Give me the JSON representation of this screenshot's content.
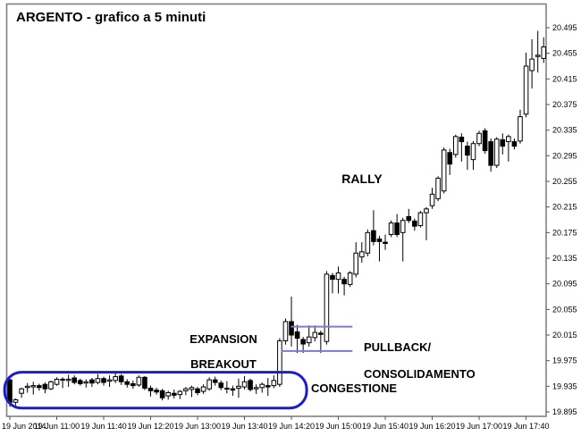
{
  "header": {
    "title": "ARGENTO - grafico a 5 minuti"
  },
  "labels": {
    "rally": "RALLY",
    "expansion_line1": "EXPANSION",
    "expansion_line2": "BREAKOUT",
    "pullback_line1": "PULLBACK/",
    "pullback_line2": "CONSOLIDAMENTO",
    "congestione": "CONGESTIONE"
  },
  "colors": {
    "background": "#ffffff",
    "frame": "#808080",
    "candle_outline": "#000000",
    "candle_up_fill": "#ffffff",
    "candle_down_fill": "#000000",
    "axis_text": "#000000",
    "annotation_text": "#000000",
    "congestion_box": "#1c1ccd",
    "consolidation_lines": "#7a7ad9"
  },
  "chart_data": {
    "type": "candlestick",
    "title": "ARGENTO - grafico a 5 minuti",
    "timeframe_minutes": 5,
    "date": "19 Jun 2014",
    "y_axis": {
      "min": 19.895,
      "max": 20.495,
      "tick_step": 0.04,
      "tick_labels": [
        "20.495",
        "20.455",
        "20.415",
        "20.375",
        "20.335",
        "20.295",
        "20.255",
        "20.215",
        "20.175",
        "20.135",
        "20.095",
        "20.055",
        "20.015",
        "19.975",
        "19.935",
        "19.895"
      ]
    },
    "x_axis": {
      "candles_per_tick": 8,
      "tick_labels": [
        "19 Jun 2014",
        "19 Jun 11:00",
        "19 Jun 11:40",
        "19 Jun 12:20",
        "19 Jun 13:00",
        "19 Jun 13:40",
        "19 Jun 14:20",
        "19 Jun 15:00",
        "19 Jun 15:40",
        "19 Jun 16:20",
        "19 Jun 17:00",
        "19 Jun 17:40"
      ]
    },
    "candles": [
      [
        "10:20",
        19.945,
        19.95,
        19.903,
        19.91
      ],
      [
        "10:25",
        19.91,
        19.916,
        19.905,
        19.914
      ],
      [
        "10:30",
        19.924,
        19.933,
        19.917,
        19.931
      ],
      [
        "10:35",
        19.933,
        19.94,
        19.925,
        19.935
      ],
      [
        "10:40",
        19.934,
        19.942,
        19.922,
        19.936
      ],
      [
        "10:45",
        19.936,
        19.939,
        19.928,
        19.933
      ],
      [
        "10:50",
        19.938,
        19.941,
        19.924,
        19.931
      ],
      [
        "10:55",
        19.931,
        19.944,
        19.929,
        19.942
      ],
      [
        "11:00",
        19.938,
        19.949,
        19.936,
        19.946
      ],
      [
        "11:05",
        19.946,
        19.949,
        19.932,
        19.945
      ],
      [
        "11:10",
        19.944,
        19.953,
        19.934,
        19.946
      ],
      [
        "11:15",
        19.948,
        19.952,
        19.938,
        19.941
      ],
      [
        "11:20",
        19.944,
        19.947,
        19.936,
        19.939
      ],
      [
        "11:25",
        19.94,
        19.946,
        19.933,
        19.942
      ],
      [
        "11:30",
        19.945,
        19.948,
        19.934,
        19.94
      ],
      [
        "11:35",
        19.941,
        19.954,
        19.938,
        19.947
      ],
      [
        "11:40",
        19.947,
        19.95,
        19.936,
        19.941
      ],
      [
        "11:45",
        19.943,
        19.952,
        19.934,
        19.945
      ],
      [
        "11:50",
        19.944,
        19.957,
        19.94,
        19.95
      ],
      [
        "11:55",
        19.951,
        19.954,
        19.937,
        19.942
      ],
      [
        "12:00",
        19.942,
        19.946,
        19.933,
        19.938
      ],
      [
        "12:05",
        19.939,
        19.944,
        19.931,
        19.936
      ],
      [
        "12:10",
        19.937,
        19.952,
        19.934,
        19.949
      ],
      [
        "12:15",
        19.949,
        19.951,
        19.929,
        19.932
      ],
      [
        "12:20",
        19.932,
        19.936,
        19.919,
        19.928
      ],
      [
        "12:25",
        19.929,
        19.933,
        19.922,
        19.926
      ],
      [
        "12:30",
        19.928,
        19.931,
        19.913,
        19.917
      ],
      [
        "12:35",
        19.92,
        19.928,
        19.914,
        19.925
      ],
      [
        "12:40",
        19.924,
        19.93,
        19.916,
        19.921
      ],
      [
        "12:45",
        19.922,
        19.929,
        19.915,
        19.927
      ],
      [
        "12:50",
        19.928,
        19.934,
        19.921,
        19.931
      ],
      [
        "12:55",
        19.93,
        19.936,
        19.918,
        19.933
      ],
      [
        "13:00",
        19.931,
        19.934,
        19.921,
        19.925
      ],
      [
        "13:05",
        19.927,
        19.938,
        19.923,
        19.934
      ],
      [
        "13:10",
        19.931,
        19.949,
        19.928,
        19.945
      ],
      [
        "13:15",
        19.945,
        19.95,
        19.936,
        19.941
      ],
      [
        "13:20",
        19.94,
        19.944,
        19.929,
        19.933
      ],
      [
        "13:25",
        19.932,
        19.943,
        19.924,
        19.931
      ],
      [
        "13:30",
        19.931,
        19.936,
        19.92,
        19.929
      ],
      [
        "13:35",
        19.932,
        19.947,
        19.917,
        19.935
      ],
      [
        "13:40",
        19.934,
        19.951,
        19.93,
        19.942
      ],
      [
        "13:45",
        19.944,
        19.947,
        19.927,
        19.93
      ],
      [
        "13:50",
        19.931,
        19.938,
        19.923,
        19.933
      ],
      [
        "13:55",
        19.933,
        19.941,
        19.925,
        19.938
      ],
      [
        "14:00",
        19.936,
        19.948,
        19.92,
        19.934
      ],
      [
        "14:05",
        19.936,
        19.952,
        19.932,
        19.944
      ],
      [
        "14:10",
        19.938,
        20.01,
        19.934,
        20.006
      ],
      [
        "14:15",
        20.006,
        20.041,
        20.0,
        20.036
      ],
      [
        "14:20",
        20.036,
        20.075,
        19.997,
        20.015
      ],
      [
        "14:25",
        20.02,
        20.031,
        19.987,
        20.01
      ],
      [
        "14:30",
        20.008,
        20.012,
        19.987,
        20.001
      ],
      [
        "14:35",
        20.003,
        20.03,
        19.997,
        20.012
      ],
      [
        "14:40",
        20.011,
        20.03,
        20.005,
        20.019
      ],
      [
        "14:45",
        20.018,
        20.022,
        19.987,
        20.016
      ],
      [
        "14:50",
        20.005,
        20.115,
        20.0,
        20.11
      ],
      [
        "14:55",
        20.108,
        20.112,
        20.08,
        20.102
      ],
      [
        "15:00",
        20.102,
        20.122,
        20.08,
        20.112
      ],
      [
        "15:05",
        20.102,
        20.106,
        20.077,
        20.095
      ],
      [
        "15:10",
        20.094,
        20.115,
        20.09,
        20.112
      ],
      [
        "15:15",
        20.11,
        20.16,
        20.105,
        20.143
      ],
      [
        "15:20",
        20.137,
        20.16,
        20.128,
        20.145
      ],
      [
        "15:25",
        20.143,
        20.18,
        20.138,
        20.175
      ],
      [
        "15:30",
        20.178,
        20.21,
        20.155,
        20.161
      ],
      [
        "15:35",
        20.165,
        20.17,
        20.13,
        20.161
      ],
      [
        "15:40",
        20.16,
        20.172,
        20.148,
        20.158
      ],
      [
        "15:45",
        20.172,
        20.194,
        20.168,
        20.19
      ],
      [
        "15:50",
        20.19,
        20.204,
        20.168,
        20.172
      ],
      [
        "15:55",
        20.175,
        20.198,
        20.13,
        20.194
      ],
      [
        "16:00",
        20.2,
        20.212,
        20.19,
        20.194
      ],
      [
        "16:05",
        20.193,
        20.197,
        20.178,
        20.185
      ],
      [
        "16:10",
        20.186,
        20.209,
        20.183,
        20.206
      ],
      [
        "16:15",
        20.206,
        20.215,
        20.163,
        20.212
      ],
      [
        "16:20",
        20.217,
        20.245,
        20.212,
        20.235
      ],
      [
        "16:25",
        20.228,
        20.263,
        20.224,
        20.26
      ],
      [
        "16:30",
        20.24,
        20.308,
        20.236,
        20.304
      ],
      [
        "16:35",
        20.3,
        20.306,
        20.265,
        20.282
      ],
      [
        "16:40",
        20.297,
        20.328,
        20.292,
        20.325
      ],
      [
        "16:45",
        20.324,
        20.33,
        20.286,
        20.317
      ],
      [
        "16:50",
        20.31,
        20.317,
        20.273,
        20.296
      ],
      [
        "16:55",
        20.289,
        20.318,
        20.273,
        20.314
      ],
      [
        "17:00",
        20.314,
        20.334,
        20.31,
        20.33
      ],
      [
        "17:05",
        20.334,
        20.338,
        20.298,
        20.303
      ],
      [
        "17:10",
        20.317,
        20.322,
        20.27,
        20.28
      ],
      [
        "17:15",
        20.28,
        20.324,
        20.276,
        20.321
      ],
      [
        "17:20",
        20.32,
        20.33,
        20.297,
        20.31
      ],
      [
        "17:25",
        20.317,
        20.328,
        20.286,
        20.325
      ],
      [
        "17:30",
        20.317,
        20.322,
        20.305,
        20.31
      ],
      [
        "17:35",
        20.318,
        20.367,
        20.314,
        20.356
      ],
      [
        "17:40",
        20.36,
        20.456,
        20.355,
        20.435
      ],
      [
        "17:45",
        20.428,
        20.477,
        20.4,
        20.446
      ],
      [
        "17:50",
        20.45,
        20.49,
        20.425,
        20.452
      ],
      [
        "17:55",
        20.447,
        20.48,
        20.44,
        20.465
      ]
    ],
    "overlays": {
      "congestion_box": {
        "from_candle": -0.9,
        "to_candle": 50.6,
        "top_price": 19.957,
        "bottom_price": 19.901
      },
      "consolidation_upper_line": {
        "price": 20.028,
        "from_candle": 47.9,
        "to_candle": 58.4
      },
      "consolidation_lower_line": {
        "price": 19.99,
        "from_candle": 46.3,
        "to_candle": 58.4
      }
    }
  }
}
